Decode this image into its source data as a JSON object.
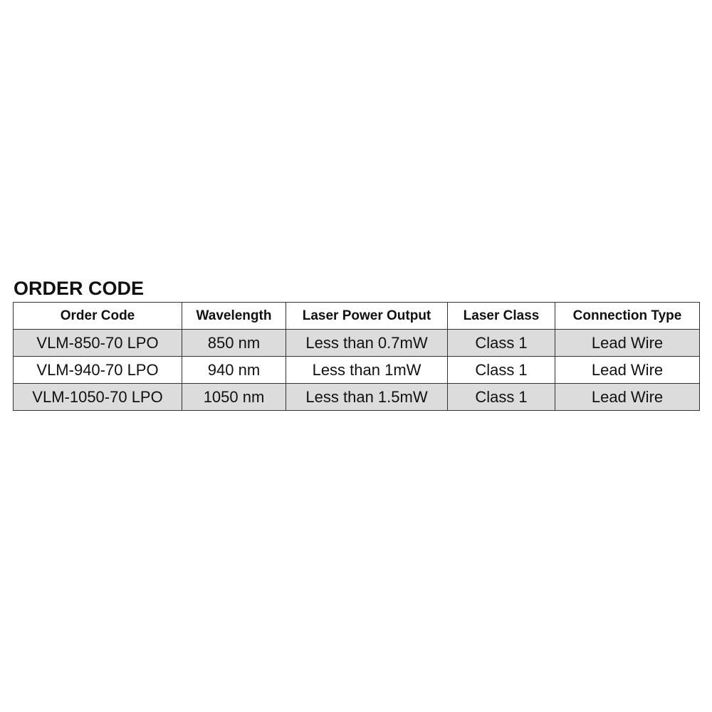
{
  "title": "ORDER CODE",
  "table": {
    "headers": [
      "Order Code",
      "Wavelength",
      "Laser Power Output",
      "Laser Class",
      "Connection Type"
    ],
    "rows": [
      [
        "VLM-850-70 LPO",
        "850 nm",
        "Less than 0.7mW",
        "Class 1",
        "Lead Wire"
      ],
      [
        "VLM-940-70 LPO",
        "940 nm",
        "Less than 1mW",
        "Class 1",
        "Lead Wire"
      ],
      [
        "VLM-1050-70 LPO",
        "1050 nm",
        "Less than 1.5mW",
        "Class 1",
        "Lead Wire"
      ]
    ],
    "stripe_color": "#dcdcdc"
  }
}
